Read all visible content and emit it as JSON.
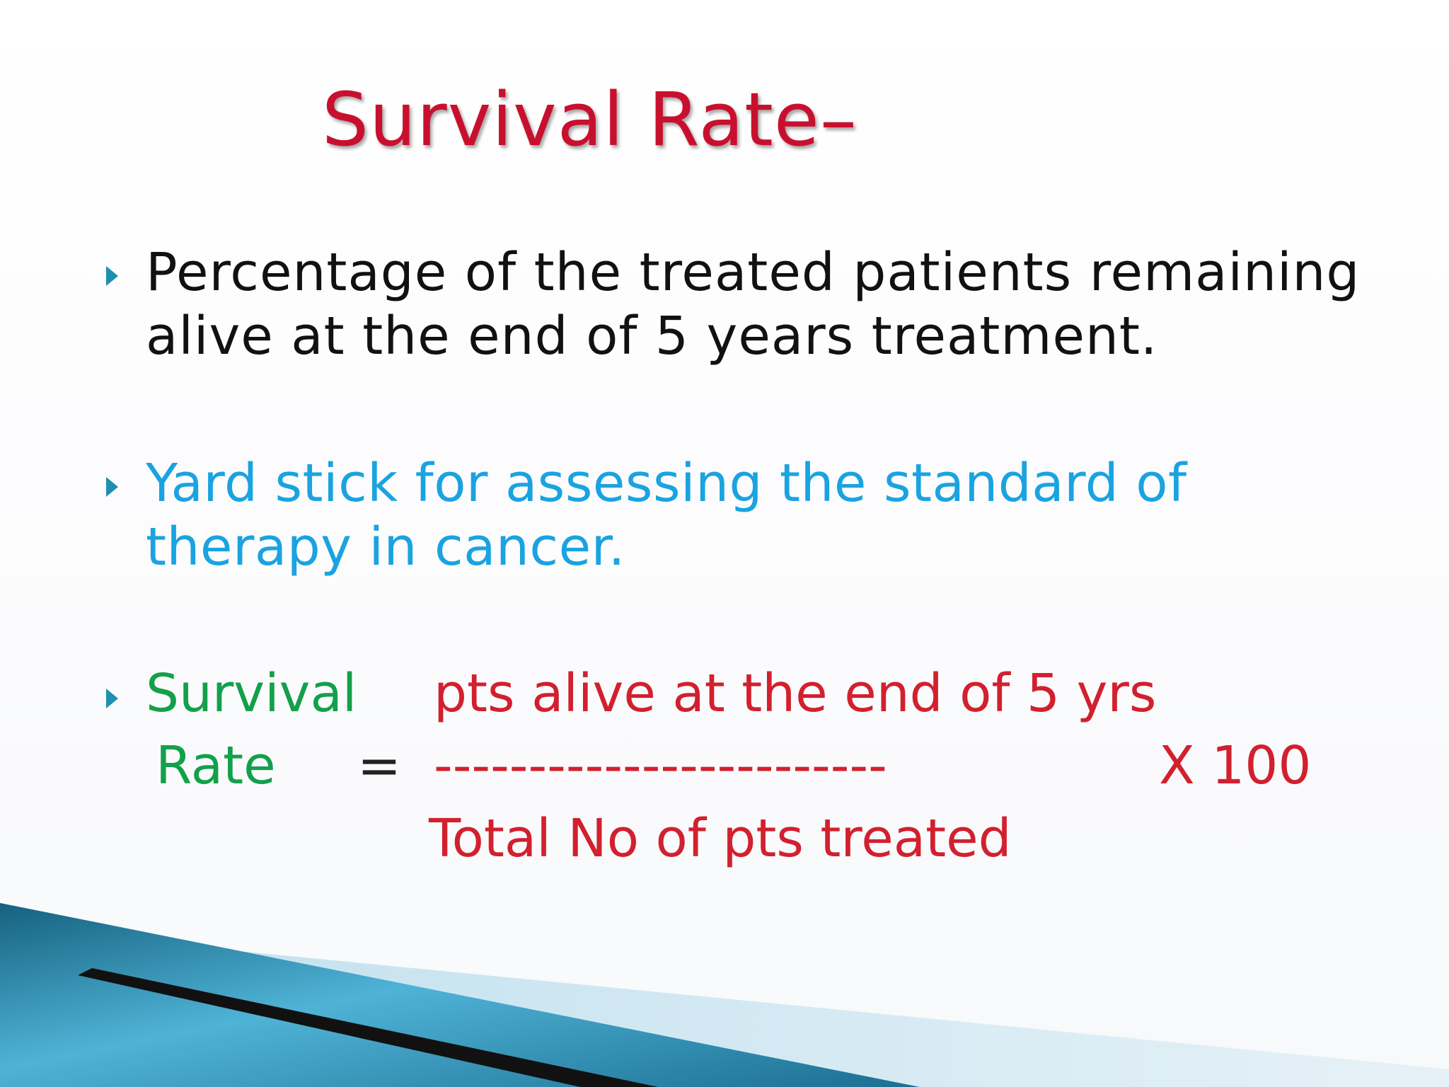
{
  "slide": {
    "title": "Survival Rate–",
    "bullets": [
      {
        "text": "Percentage of the treated patients remaining\nalive at the end of 5 years treatment.",
        "color": "#111111"
      },
      {
        "text": "Yard stick for assessing the standard of\ntherapy in cancer.",
        "color": "#1aa3e0"
      }
    ],
    "formula": {
      "label_line1": "Survival",
      "label_line2": "Rate",
      "equals": "=",
      "numerator": "pts alive at the end of 5 yrs",
      "fraction_bar": "------------------------",
      "multiplier": "X 100",
      "denominator": "Total No of pts treated",
      "label_color": "#13a04a",
      "fraction_color": "#d2202e"
    },
    "colors": {
      "title": "#c8102e",
      "bullet_marker": "#1f8fb0",
      "accent_blue": "#1b7fa6"
    }
  }
}
